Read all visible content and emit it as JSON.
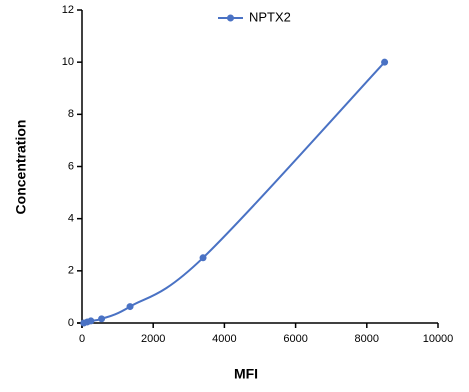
{
  "chart_data": {
    "type": "line",
    "x_label": "MFI",
    "y_label": "Concentration",
    "series": [
      {
        "name": "NPTX2",
        "color": "#4a72c4",
        "x": [
          50,
          150,
          250,
          550,
          1350,
          3400,
          8500
        ],
        "values": [
          0,
          0.04,
          0.08,
          0.16,
          0.63,
          2.5,
          10
        ]
      }
    ],
    "xlim": [
      0,
      10000
    ],
    "xticks": [
      0,
      2000,
      4000,
      6000,
      8000,
      10000
    ],
    "ylim": [
      0,
      12
    ],
    "yticks": [
      0,
      2,
      4,
      6,
      8,
      10,
      12
    ],
    "legend": "top",
    "grid": false
  }
}
